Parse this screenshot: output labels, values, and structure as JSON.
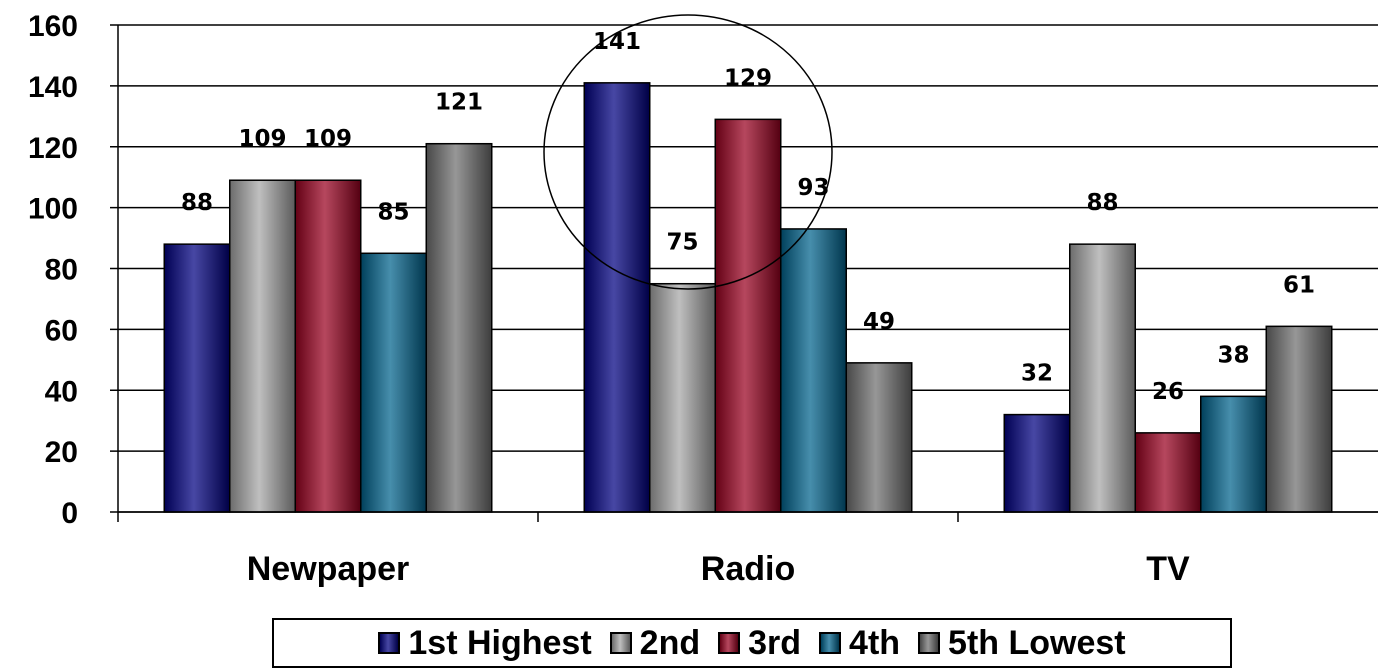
{
  "chart_data": {
    "type": "bar",
    "title": "",
    "xlabel": "",
    "ylabel": "",
    "ylim": [
      0,
      160
    ],
    "yticks": [
      0,
      20,
      40,
      60,
      80,
      100,
      120,
      140,
      160
    ],
    "grid": true,
    "legend_position": "bottom",
    "categories": [
      "Newpaper",
      "Radio",
      "TV"
    ],
    "series": [
      {
        "name": "1st Highest",
        "color": "#000080",
        "values": [
          88,
          141,
          32
        ]
      },
      {
        "name": "2nd",
        "color": "#a6a6a6",
        "values": [
          109,
          75,
          88
        ]
      },
      {
        "name": "3rd",
        "color": "#99001f",
        "values": [
          109,
          129,
          26
        ]
      },
      {
        "name": "4th",
        "color": "#00628c",
        "values": [
          85,
          93,
          38
        ]
      },
      {
        "name": "5th Lowest",
        "color": "#6e6e6e",
        "values": [
          121,
          49,
          61
        ]
      }
    ],
    "annotations": [
      {
        "type": "ellipse",
        "category": "Radio",
        "description": "circle highlighting Radio bars"
      }
    ]
  }
}
